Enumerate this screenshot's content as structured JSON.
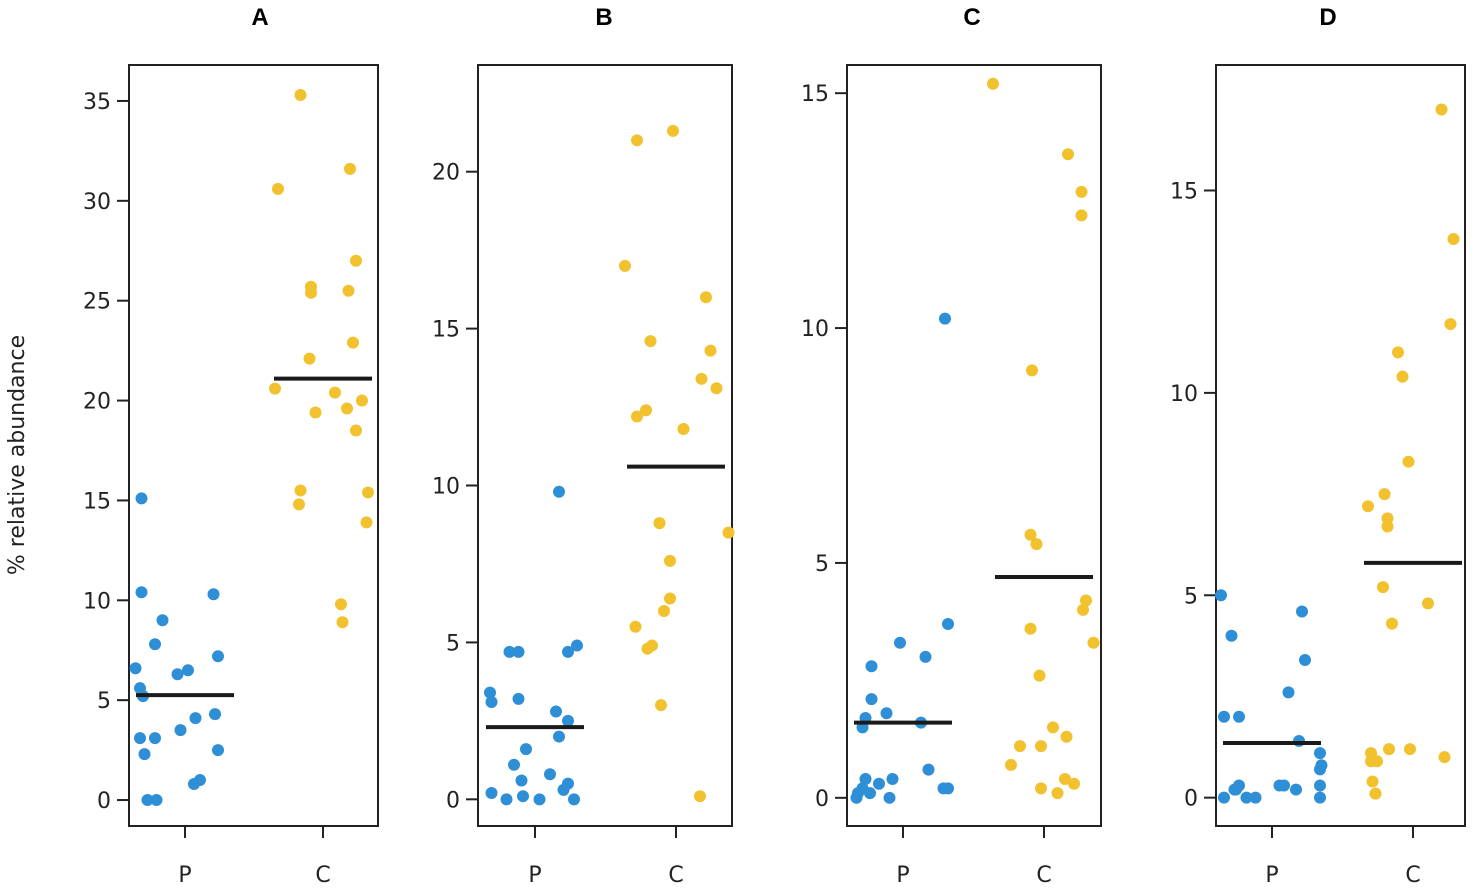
{
  "chart_data": [
    {
      "type": "scatter",
      "title": "A",
      "ylabel": "% relative abundance",
      "ylim": [
        -1.3,
        36.8
      ],
      "yticks": [
        0,
        5,
        10,
        15,
        20,
        25,
        30,
        35
      ],
      "categories": [
        "P",
        "C"
      ],
      "series": [
        {
          "name": "P",
          "color": "#2f8fd6",
          "median": 5.25,
          "points": [
            [
              -0.29,
              15.1
            ],
            [
              -0.29,
              10.4
            ],
            [
              -0.15,
              9.0
            ],
            [
              -0.2,
              7.8
            ],
            [
              0.19,
              10.3
            ],
            [
              0.22,
              7.2
            ],
            [
              -0.33,
              6.6
            ],
            [
              0.02,
              6.5
            ],
            [
              -0.05,
              6.3
            ],
            [
              -0.3,
              5.6
            ],
            [
              -0.28,
              5.2
            ],
            [
              0.2,
              4.3
            ],
            [
              0.07,
              4.1
            ],
            [
              -0.03,
              3.5
            ],
            [
              -0.3,
              3.1
            ],
            [
              -0.2,
              3.1
            ],
            [
              -0.27,
              2.3
            ],
            [
              0.22,
              2.5
            ],
            [
              0.1,
              1.0
            ],
            [
              0.06,
              0.8
            ],
            [
              -0.25,
              0.0
            ],
            [
              -0.19,
              0.0
            ]
          ]
        },
        {
          "name": "C",
          "color": "#f2c12e",
          "median": 21.1,
          "points": [
            [
              -0.15,
              35.3
            ],
            [
              0.18,
              31.6
            ],
            [
              -0.3,
              30.6
            ],
            [
              0.22,
              27.0
            ],
            [
              -0.08,
              25.7
            ],
            [
              -0.08,
              25.4
            ],
            [
              0.17,
              25.5
            ],
            [
              0.2,
              22.9
            ],
            [
              -0.09,
              22.1
            ],
            [
              -0.32,
              20.6
            ],
            [
              0.08,
              20.4
            ],
            [
              0.26,
              20.0
            ],
            [
              0.16,
              19.6
            ],
            [
              -0.05,
              19.4
            ],
            [
              0.22,
              18.5
            ],
            [
              -0.15,
              15.5
            ],
            [
              -0.16,
              14.8
            ],
            [
              0.3,
              15.4
            ],
            [
              0.29,
              13.9
            ],
            [
              0.12,
              9.8
            ],
            [
              0.13,
              8.9
            ]
          ]
        }
      ]
    },
    {
      "type": "scatter",
      "title": "B",
      "ylim": [
        -0.85,
        23.4
      ],
      "yticks": [
        0,
        5,
        10,
        15,
        20
      ],
      "categories": [
        "P",
        "C"
      ],
      "series": [
        {
          "name": "P",
          "color": "#2f8fd6",
          "median": 2.3,
          "points": [
            [
              0.16,
              9.8
            ],
            [
              0.28,
              4.9
            ],
            [
              0.22,
              4.7
            ],
            [
              -0.17,
              4.7
            ],
            [
              -0.11,
              4.7
            ],
            [
              -0.3,
              3.4
            ],
            [
              -0.29,
              3.1
            ],
            [
              -0.11,
              3.2
            ],
            [
              0.14,
              2.8
            ],
            [
              0.22,
              2.5
            ],
            [
              0.16,
              2.0
            ],
            [
              -0.06,
              1.6
            ],
            [
              -0.14,
              1.1
            ],
            [
              0.1,
              0.8
            ],
            [
              -0.09,
              0.6
            ],
            [
              0.22,
              0.5
            ],
            [
              -0.29,
              0.2
            ],
            [
              0.19,
              0.3
            ],
            [
              -0.08,
              0.1
            ],
            [
              -0.19,
              0.0
            ],
            [
              0.03,
              0.0
            ],
            [
              0.26,
              0.0
            ]
          ]
        },
        {
          "name": "C",
          "color": "#f2c12e",
          "median": 10.6,
          "points": [
            [
              -0.26,
              21.0
            ],
            [
              -0.02,
              21.3
            ],
            [
              -0.34,
              17.0
            ],
            [
              0.2,
              16.0
            ],
            [
              -0.17,
              14.6
            ],
            [
              0.23,
              14.3
            ],
            [
              0.17,
              13.4
            ],
            [
              0.27,
              13.1
            ],
            [
              -0.2,
              12.4
            ],
            [
              -0.26,
              12.2
            ],
            [
              0.05,
              11.8
            ],
            [
              -0.11,
              8.8
            ],
            [
              0.35,
              8.5
            ],
            [
              -0.04,
              7.6
            ],
            [
              -0.04,
              6.4
            ],
            [
              -0.08,
              6.0
            ],
            [
              -0.27,
              5.5
            ],
            [
              -0.19,
              4.8
            ],
            [
              -0.16,
              4.9
            ],
            [
              -0.1,
              3.0
            ],
            [
              0.16,
              0.1
            ]
          ]
        }
      ]
    },
    {
      "type": "scatter",
      "title": "C",
      "ylim": [
        -0.6,
        15.6
      ],
      "yticks": [
        0,
        5,
        10,
        15
      ],
      "categories": [
        "P",
        "C"
      ],
      "series": [
        {
          "name": "P",
          "color": "#2f8fd6",
          "median": 1.6,
          "points": [
            [
              0.28,
              10.2
            ],
            [
              0.3,
              3.7
            ],
            [
              -0.02,
              3.3
            ],
            [
              0.15,
              3.0
            ],
            [
              -0.21,
              2.8
            ],
            [
              -0.21,
              2.1
            ],
            [
              -0.11,
              1.8
            ],
            [
              -0.25,
              1.7
            ],
            [
              0.12,
              1.6
            ],
            [
              -0.27,
              1.5
            ],
            [
              -0.25,
              0.4
            ],
            [
              -0.16,
              0.3
            ],
            [
              0.17,
              0.6
            ],
            [
              -0.07,
              0.4
            ],
            [
              -0.27,
              0.2
            ],
            [
              -0.3,
              0.1
            ],
            [
              -0.22,
              0.1
            ],
            [
              0.27,
              0.2
            ],
            [
              0.3,
              0.2
            ],
            [
              -0.31,
              0.0
            ],
            [
              -0.09,
              0.0
            ]
          ]
        },
        {
          "name": "C",
          "color": "#f2c12e",
          "median": 4.7,
          "points": [
            [
              -0.34,
              15.2
            ],
            [
              0.16,
              13.7
            ],
            [
              0.25,
              12.9
            ],
            [
              0.25,
              12.4
            ],
            [
              -0.08,
              9.1
            ],
            [
              -0.09,
              5.6
            ],
            [
              -0.05,
              5.4
            ],
            [
              0.28,
              4.2
            ],
            [
              0.26,
              4.0
            ],
            [
              -0.09,
              3.6
            ],
            [
              0.33,
              3.3
            ],
            [
              -0.03,
              2.6
            ],
            [
              0.06,
              1.5
            ],
            [
              0.15,
              1.3
            ],
            [
              -0.16,
              1.1
            ],
            [
              -0.02,
              1.1
            ],
            [
              -0.22,
              0.7
            ],
            [
              0.14,
              0.4
            ],
            [
              0.2,
              0.3
            ],
            [
              -0.02,
              0.2
            ],
            [
              0.09,
              0.1
            ]
          ]
        }
      ]
    },
    {
      "type": "scatter",
      "title": "D",
      "ylim": [
        -0.7,
        18.1
      ],
      "yticks": [
        0,
        5,
        10,
        15
      ],
      "categories": [
        "P",
        "C"
      ],
      "series": [
        {
          "name": "P",
          "color": "#2f8fd6",
          "median": 1.35,
          "points": [
            [
              -0.34,
              5.0
            ],
            [
              0.2,
              4.6
            ],
            [
              -0.27,
              4.0
            ],
            [
              0.22,
              3.4
            ],
            [
              0.11,
              2.6
            ],
            [
              -0.32,
              2.0
            ],
            [
              -0.22,
              2.0
            ],
            [
              0.18,
              1.4
            ],
            [
              0.32,
              1.1
            ],
            [
              0.33,
              0.8
            ],
            [
              0.32,
              0.7
            ],
            [
              0.05,
              0.3
            ],
            [
              0.08,
              0.3
            ],
            [
              0.32,
              0.3
            ],
            [
              -0.22,
              0.3
            ],
            [
              -0.24,
              0.2
            ],
            [
              -0.25,
              0.2
            ],
            [
              0.16,
              0.2
            ],
            [
              -0.32,
              0.0
            ],
            [
              -0.17,
              0.0
            ],
            [
              -0.11,
              0.0
            ],
            [
              0.32,
              0.0
            ]
          ]
        },
        {
          "name": "C",
          "color": "#f2c12e",
          "median": 5.8,
          "points": [
            [
              0.19,
              17.0
            ],
            [
              0.27,
              13.8
            ],
            [
              0.25,
              11.7
            ],
            [
              -0.1,
              11.0
            ],
            [
              -0.07,
              10.4
            ],
            [
              -0.03,
              8.3
            ],
            [
              -0.19,
              7.5
            ],
            [
              -0.3,
              7.2
            ],
            [
              -0.17,
              6.9
            ],
            [
              -0.17,
              6.7
            ],
            [
              -0.2,
              5.2
            ],
            [
              0.1,
              4.8
            ],
            [
              -0.14,
              4.3
            ],
            [
              -0.28,
              1.1
            ],
            [
              -0.24,
              0.9
            ],
            [
              -0.28,
              0.9
            ],
            [
              -0.16,
              1.2
            ],
            [
              -0.02,
              1.2
            ],
            [
              0.21,
              1.0
            ],
            [
              -0.27,
              0.4
            ],
            [
              -0.25,
              0.1
            ]
          ]
        }
      ]
    }
  ]
}
